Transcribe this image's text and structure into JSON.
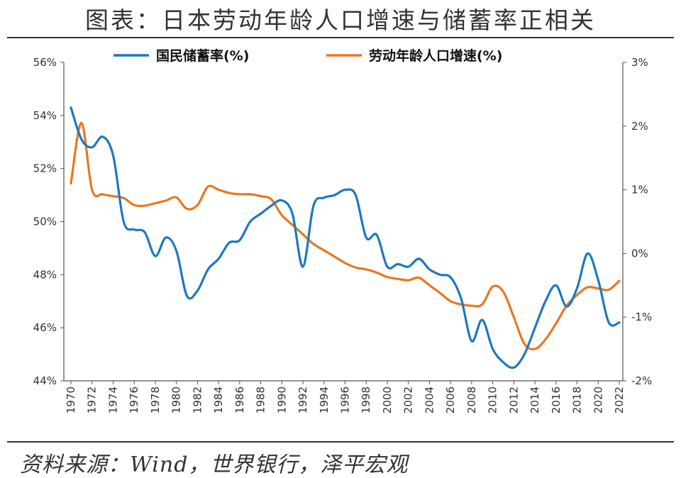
{
  "page": {
    "title": "图表：日本劳动年龄人口增速与储蓄率正相关",
    "source": "资料来源：Wind，世界银行，泽平宏观"
  },
  "chart_data": {
    "type": "line",
    "title": "图表：日本劳动年龄人口增速与储蓄率正相关",
    "x": [
      1970,
      1971,
      1972,
      1973,
      1974,
      1975,
      1976,
      1977,
      1978,
      1979,
      1980,
      1981,
      1982,
      1983,
      1984,
      1985,
      1986,
      1987,
      1988,
      1989,
      1990,
      1991,
      1992,
      1993,
      1994,
      1995,
      1996,
      1997,
      1998,
      1999,
      2000,
      2001,
      2002,
      2003,
      2004,
      2005,
      2006,
      2007,
      2008,
      2009,
      2010,
      2011,
      2012,
      2013,
      2014,
      2015,
      2016,
      2017,
      2018,
      2019,
      2020,
      2021,
      2022
    ],
    "xticks": [
      "1970",
      "1972",
      "1974",
      "1976",
      "1978",
      "1980",
      "1982",
      "1984",
      "1986",
      "1988",
      "1990",
      "1992",
      "1994",
      "1996",
      "1998",
      "2000",
      "2002",
      "2004",
      "2006",
      "2008",
      "2010",
      "2012",
      "2014",
      "2016",
      "2018",
      "2020",
      "2022"
    ],
    "y_left": {
      "min": 44,
      "max": 56,
      "step": 2,
      "unit": "%"
    },
    "y_right": {
      "min": -2,
      "max": 3,
      "step": 1,
      "unit": "%"
    },
    "legend_position": "top",
    "grid": false,
    "series": [
      {
        "name": "国民储蓄率(%)",
        "axis": "left",
        "color": "#1f77c2",
        "values": [
          54.3,
          53.1,
          52.8,
          53.2,
          52.5,
          50.0,
          49.7,
          49.6,
          48.7,
          49.4,
          48.9,
          47.2,
          47.4,
          48.2,
          48.6,
          49.2,
          49.3,
          50.0,
          50.3,
          50.6,
          50.8,
          50.3,
          48.3,
          50.6,
          50.9,
          51.0,
          51.2,
          51.0,
          49.4,
          49.5,
          48.3,
          48.4,
          48.3,
          48.6,
          48.2,
          48.0,
          47.9,
          47.1,
          45.5,
          46.3,
          45.2,
          44.7,
          44.5,
          45.0,
          46.0,
          47.0,
          47.6,
          46.8,
          47.5,
          48.8,
          47.8,
          46.2,
          46.2
        ]
      },
      {
        "name": "劳动年龄人口增速(%)",
        "axis": "right",
        "color": "#e87722",
        "values": [
          1.1,
          2.05,
          1.0,
          0.93,
          0.9,
          0.87,
          0.76,
          0.75,
          0.79,
          0.83,
          0.88,
          0.7,
          0.76,
          1.05,
          1.0,
          0.95,
          0.93,
          0.93,
          0.9,
          0.85,
          0.6,
          0.45,
          0.3,
          0.15,
          0.05,
          -0.05,
          -0.15,
          -0.22,
          -0.25,
          -0.3,
          -0.37,
          -0.4,
          -0.42,
          -0.38,
          -0.5,
          -0.62,
          -0.75,
          -0.8,
          -0.82,
          -0.8,
          -0.52,
          -0.6,
          -1.0,
          -1.42,
          -1.5,
          -1.35,
          -1.1,
          -0.82,
          -0.65,
          -0.53,
          -0.55,
          -0.57,
          -0.43
        ]
      }
    ]
  }
}
